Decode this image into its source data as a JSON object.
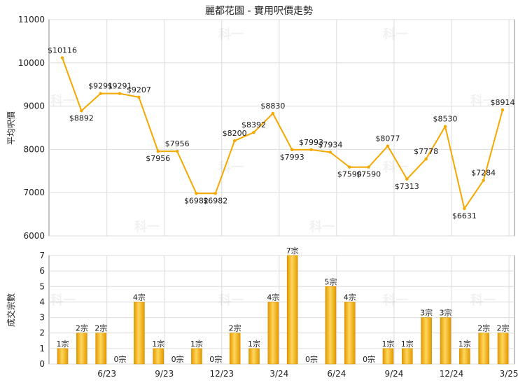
{
  "chart_data": [
    {
      "type": "line",
      "title": "麗都花園 - 實用呎價走勢",
      "ylabel": "平均呎價",
      "ylim": [
        6000,
        11000
      ],
      "yticks": [
        6000,
        7000,
        8000,
        9000,
        10000,
        11000
      ],
      "grid": true,
      "color": "#f5a800",
      "points": [
        {
          "i": 0,
          "value": 10116,
          "label": "$10116"
        },
        {
          "i": 1,
          "value": 8892,
          "label": "$8892"
        },
        {
          "i": 2,
          "value": 9291,
          "label": "$9291"
        },
        {
          "i": 3,
          "value": 9291,
          "label": "$9291"
        },
        {
          "i": 4,
          "value": 9207,
          "label": "$9207"
        },
        {
          "i": 5,
          "value": 7956,
          "label": "$7956"
        },
        {
          "i": 6,
          "value": 7956,
          "label": "$7956"
        },
        {
          "i": 7,
          "value": 6982,
          "label": "$6982"
        },
        {
          "i": 8,
          "value": 6982,
          "label": "$6982"
        },
        {
          "i": 9,
          "value": 8200,
          "label": "$8200"
        },
        {
          "i": 10,
          "value": 8392,
          "label": "$8392"
        },
        {
          "i": 11,
          "value": 8830,
          "label": "$8830"
        },
        {
          "i": 12,
          "value": 7993,
          "label": "$7993"
        },
        {
          "i": 13,
          "value": 7993,
          "label": "$7993"
        },
        {
          "i": 14,
          "value": 7934,
          "label": "$7934"
        },
        {
          "i": 15,
          "value": 7590,
          "label": "$7590"
        },
        {
          "i": 16,
          "value": 7590,
          "label": "$7590"
        },
        {
          "i": 17,
          "value": 8077,
          "label": "$8077"
        },
        {
          "i": 18,
          "value": 7313,
          "label": "$7313"
        },
        {
          "i": 19,
          "value": 7778,
          "label": "$7778"
        },
        {
          "i": 20,
          "value": 8530,
          "label": "$8530"
        },
        {
          "i": 21,
          "value": 6631,
          "label": "$6631"
        },
        {
          "i": 22,
          "value": 7284,
          "label": "$7284"
        },
        {
          "i": 23,
          "value": 8914,
          "label": "$8914"
        }
      ]
    },
    {
      "type": "bar",
      "ylabel": "成交宗數",
      "ylim": [
        0,
        7
      ],
      "yticks": [
        0,
        1,
        2,
        3,
        4,
        5,
        6,
        7
      ],
      "grid": true,
      "color": "#f5a800",
      "unit_suffix": "宗",
      "values": [
        1,
        2,
        2,
        0,
        4,
        1,
        0,
        1,
        0,
        2,
        1,
        4,
        7,
        0,
        5,
        4,
        0,
        1,
        1,
        3,
        3,
        1,
        2,
        2
      ],
      "labels": [
        "1宗",
        "2宗",
        "2宗",
        "0宗",
        "4宗",
        "1宗",
        "0宗",
        "1宗",
        "0宗",
        "2宗",
        "1宗",
        "4宗",
        "7宗",
        "0宗",
        "5宗",
        "4宗",
        "0宗",
        "1宗",
        "1宗",
        "3宗",
        "3宗",
        "1宗",
        "2宗",
        "2宗"
      ]
    }
  ],
  "x_ticks": [
    {
      "i": 2,
      "label": "6/23"
    },
    {
      "i": 5,
      "label": "9/23"
    },
    {
      "i": 8,
      "label": "12/23"
    },
    {
      "i": 11,
      "label": "3/24"
    },
    {
      "i": 14,
      "label": "6/24"
    },
    {
      "i": 17,
      "label": "9/24"
    },
    {
      "i": 20,
      "label": "12/24"
    },
    {
      "i": 23,
      "label": "3/25"
    }
  ],
  "watermark_text": "科一",
  "colors": {
    "line": "#f5a800",
    "grid": "#dcdcdc",
    "axis": "#888888",
    "bar_light": "#ffd65c",
    "bar_dark": "#e39a00"
  }
}
